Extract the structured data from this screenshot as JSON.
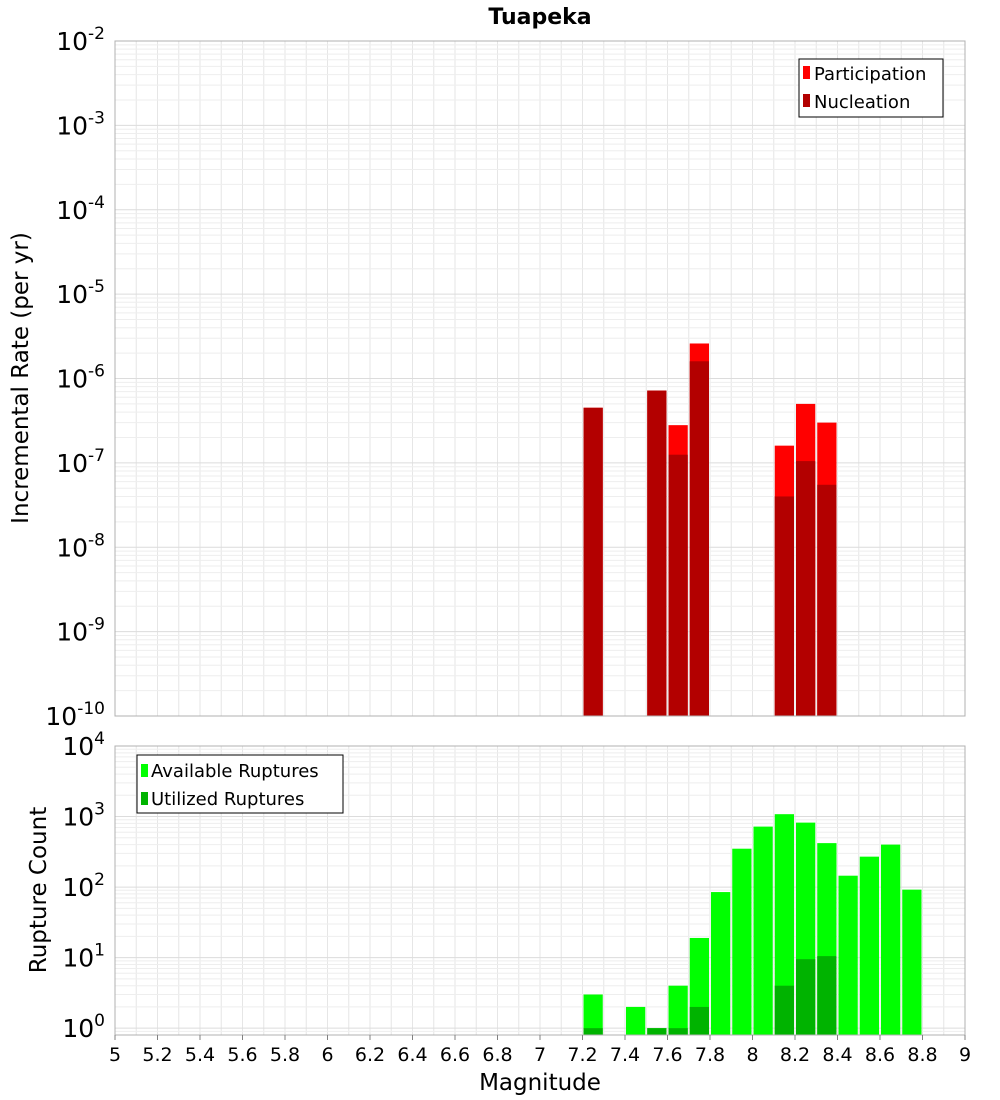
{
  "chart_data": [
    {
      "type": "bar",
      "title": "Tuapeka",
      "xlabel": "",
      "ylabel": "Incremental Rate (per yr)",
      "yscale": "log",
      "xlim": [
        5,
        9
      ],
      "ylim": [
        1e-10,
        0.01
      ],
      "y_tick_exponents": [
        "-10",
        "-9",
        "-8",
        "-7",
        "-6",
        "-5",
        "-4",
        "-3",
        "-2"
      ],
      "bar_width": 0.1,
      "grid": true,
      "legend_position": "top-right",
      "colors": {
        "Participation": "#ff0000",
        "Nucleation": "#b30000"
      },
      "x": [
        7.25,
        7.55,
        7.65,
        7.75,
        8.15,
        8.25,
        8.35
      ],
      "series": [
        {
          "name": "Participation",
          "values": [
            4.5e-07,
            7.2e-07,
            2.8e-07,
            2.6e-06,
            1.6e-07,
            5e-07,
            3e-07
          ]
        },
        {
          "name": "Nucleation",
          "values": [
            4.5e-07,
            7.2e-07,
            1.25e-07,
            1.6e-06,
            4e-08,
            1.05e-07,
            5.5e-08
          ]
        }
      ]
    },
    {
      "type": "bar",
      "title": "",
      "xlabel": "Magnitude",
      "ylabel": "Rupture Count",
      "yscale": "log",
      "xlim": [
        5,
        9
      ],
      "ylim": [
        0.8,
        10000
      ],
      "y_tick_values": [
        1,
        10,
        100,
        1000,
        10000
      ],
      "y_tick_exponents": [
        "0",
        "1",
        "2",
        "3",
        "4"
      ],
      "x_ticks": [
        "5",
        "5.2",
        "5.4",
        "5.6",
        "5.8",
        "6",
        "6.2",
        "6.4",
        "6.6",
        "6.8",
        "7",
        "7.2",
        "7.4",
        "7.6",
        "7.8",
        "8",
        "8.2",
        "8.4",
        "8.6",
        "8.8",
        "9"
      ],
      "bar_width": 0.1,
      "grid": true,
      "legend_position": "top-left",
      "colors": {
        "Available Ruptures": "#00ff00",
        "Utilized Ruptures": "#00b300"
      },
      "x": [
        7.25,
        7.45,
        7.55,
        7.65,
        7.75,
        7.85,
        7.95,
        8.05,
        8.15,
        8.25,
        8.35,
        8.45,
        8.55,
        8.65,
        8.75
      ],
      "series": [
        {
          "name": "Available Ruptures",
          "values": [
            3,
            2,
            1,
            4,
            19,
            85,
            350,
            720,
            1080,
            820,
            420,
            145,
            270,
            400,
            92
          ]
        },
        {
          "name": "Utilized Ruptures",
          "values": [
            1,
            0,
            1,
            1,
            2,
            0,
            0,
            0,
            4,
            9.5,
            10.5,
            0,
            0,
            0,
            0
          ]
        }
      ]
    }
  ]
}
